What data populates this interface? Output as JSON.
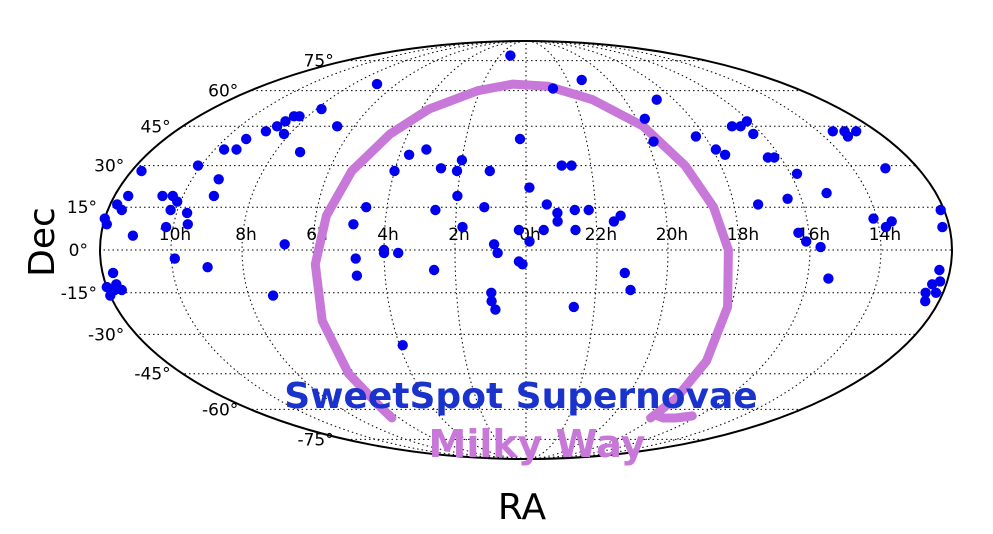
{
  "chart_data": {
    "type": "scatter",
    "projection": "mollweide",
    "xlabel": "RA",
    "ylabel": "Dec",
    "ra_tick_labels": [
      "10h",
      "8h",
      "6h",
      "4h",
      "2h",
      "0h",
      "22h",
      "20h",
      "18h",
      "16h",
      "14h"
    ],
    "dec_tick_labels": [
      "75°",
      "60°",
      "45°",
      "30°",
      "15°",
      "0°",
      "-15°",
      "-30°",
      "-45°",
      "-60°",
      "-75°"
    ],
    "grid": true,
    "series": [
      {
        "name": "SweetSpot Supernovae",
        "color": "#0000ee",
        "marker": "circle",
        "points": [
          {
            "ra_h": 1.2,
            "dec": 78
          },
          {
            "ra_h": 6.9,
            "dec": 63
          },
          {
            "ra_h": 21.3,
            "dec": 65
          },
          {
            "ra_h": 22.8,
            "dec": 61
          },
          {
            "ra_h": 7.8,
            "dec": 52
          },
          {
            "ra_h": 8.5,
            "dec": 49
          },
          {
            "ra_h": 8.3,
            "dec": 49
          },
          {
            "ra_h": 8.6,
            "dec": 47
          },
          {
            "ra_h": 8.7,
            "dec": 45
          },
          {
            "ra_h": 8.9,
            "dec": 43
          },
          {
            "ra_h": 8.2,
            "dec": 42
          },
          {
            "ra_h": 9.3,
            "dec": 40
          },
          {
            "ra_h": 9.7,
            "dec": 36
          },
          {
            "ra_h": 9.3,
            "dec": 36
          },
          {
            "ra_h": 7.2,
            "dec": 35
          },
          {
            "ra_h": 6.6,
            "dec": 45
          },
          {
            "ra_h": 3.2,
            "dec": 36
          },
          {
            "ra_h": 2.0,
            "dec": 32
          },
          {
            "ra_h": 2.6,
            "dec": 29
          },
          {
            "ra_h": 2.1,
            "dec": 28
          },
          {
            "ra_h": 1.1,
            "dec": 28
          },
          {
            "ra_h": 0.2,
            "dec": 40
          },
          {
            "ra_h": 22.9,
            "dec": 30
          },
          {
            "ra_h": 22.6,
            "dec": 30
          },
          {
            "ra_h": 18.7,
            "dec": 56
          },
          {
            "ra_h": 19.7,
            "dec": 48
          },
          {
            "ra_h": 19.8,
            "dec": 39
          },
          {
            "ra_h": 18.3,
            "dec": 41
          },
          {
            "ra_h": 17.9,
            "dec": 36
          },
          {
            "ra_h": 17.7,
            "dec": 34
          },
          {
            "ra_h": 16.8,
            "dec": 45
          },
          {
            "ra_h": 16.5,
            "dec": 45
          },
          {
            "ra_h": 16.1,
            "dec": 47
          },
          {
            "ra_h": 16.3,
            "dec": 42
          },
          {
            "ra_h": 16.4,
            "dec": 33
          },
          {
            "ra_h": 16.2,
            "dec": 33
          },
          {
            "ra_h": 15.8,
            "dec": 27
          },
          {
            "ra_h": 13.5,
            "dec": 43
          },
          {
            "ra_h": 13.1,
            "dec": 43
          },
          {
            "ra_h": 13.2,
            "dec": 41
          },
          {
            "ra_h": 12.7,
            "dec": 43
          },
          {
            "ra_h": 13.0,
            "dec": 29
          },
          {
            "ra_h": 11.7,
            "dec": 28
          },
          {
            "ra_h": 10.1,
            "dec": 30
          },
          {
            "ra_h": 9.2,
            "dec": 25
          },
          {
            "ra_h": 9.1,
            "dec": 19
          },
          {
            "ra_h": 10.3,
            "dec": 19
          },
          {
            "ra_h": 10.6,
            "dec": 19
          },
          {
            "ra_h": 11.6,
            "dec": 19
          },
          {
            "ra_h": 11.6,
            "dec": 14
          },
          {
            "ra_h": 10.2,
            "dec": 14
          },
          {
            "ra_h": 10.1,
            "dec": 17
          },
          {
            "ra_h": 11.1,
            "dec": 5
          },
          {
            "ra_h": 11.8,
            "dec": 16
          },
          {
            "ra_h": 9.7,
            "dec": 13
          },
          {
            "ra_h": 9.6,
            "dec": 9
          },
          {
            "ra_h": 10.2,
            "dec": 8
          },
          {
            "ra_h": 4.0,
            "dec": 28
          },
          {
            "ra_h": 2.0,
            "dec": 19
          },
          {
            "ra_h": 1.2,
            "dec": 15
          },
          {
            "ra_h": 2.6,
            "dec": 14
          },
          {
            "ra_h": 23.9,
            "dec": 22
          },
          {
            "ra_h": 23.4,
            "dec": 16
          },
          {
            "ra_h": 23.1,
            "dec": 13
          },
          {
            "ra_h": 22.6,
            "dec": 14
          },
          {
            "ra_h": 22.2,
            "dec": 14
          },
          {
            "ra_h": 23.1,
            "dec": 10
          },
          {
            "ra_h": 22.6,
            "dec": 7
          },
          {
            "ra_h": 23.5,
            "dec": 7
          },
          {
            "ra_h": 21.3,
            "dec": 12
          },
          {
            "ra_h": 21.5,
            "dec": 10
          },
          {
            "ra_h": 15.2,
            "dec": 20
          },
          {
            "ra_h": 17.3,
            "dec": 16
          },
          {
            "ra_h": 16.4,
            "dec": 18
          },
          {
            "ra_h": 14.1,
            "dec": 11
          },
          {
            "ra_h": 13.6,
            "dec": 10
          },
          {
            "ra_h": 13.8,
            "dec": 8
          },
          {
            "ra_h": 12.1,
            "dec": 14
          },
          {
            "ra_h": 12.0,
            "dec": 11
          },
          {
            "ra_h": 11.9,
            "dec": 9
          },
          {
            "ra_h": 12.2,
            "dec": 8
          },
          {
            "ra_h": 16.3,
            "dec": 6
          },
          {
            "ra_h": 16.1,
            "dec": 3
          },
          {
            "ra_h": 15.7,
            "dec": 1
          },
          {
            "ra_h": 15.4,
            "dec": -10
          },
          {
            "ra_h": 12.3,
            "dec": -7
          },
          {
            "ra_h": 11.8,
            "dec": -14
          },
          {
            "ra_h": 12.2,
            "dec": -15
          },
          {
            "ra_h": 12.0,
            "dec": -13
          },
          {
            "ra_h": 12.2,
            "dec": -11
          },
          {
            "ra_h": 12.4,
            "dec": -12
          },
          {
            "ra_h": 12.0,
            "dec": -16
          },
          {
            "ra_h": 11.6,
            "dec": -14
          },
          {
            "ra_h": 11.7,
            "dec": -12
          },
          {
            "ra_h": 12.5,
            "dec": -15
          },
          {
            "ra_h": 12.4,
            "dec": -18
          },
          {
            "ra_h": 11.7,
            "dec": -8
          },
          {
            "ra_h": 9.0,
            "dec": -6
          },
          {
            "ra_h": 9.9,
            "dec": -3
          },
          {
            "ra_h": 7.3,
            "dec": -16
          },
          {
            "ra_h": 6.8,
            "dec": 2
          },
          {
            "ra_h": 4.8,
            "dec": -9
          },
          {
            "ra_h": 4.8,
            "dec": -3
          },
          {
            "ra_h": 4.0,
            "dec": 0
          },
          {
            "ra_h": 4.0,
            "dec": -1
          },
          {
            "ra_h": 3.6,
            "dec": -1
          },
          {
            "ra_h": 3.9,
            "dec": -34
          },
          {
            "ra_h": 2.6,
            "dec": -7
          },
          {
            "ra_h": 1.8,
            "dec": 8
          },
          {
            "ra_h": 0.9,
            "dec": 2
          },
          {
            "ra_h": 0.8,
            "dec": -1
          },
          {
            "ra_h": 0.2,
            "dec": -4
          },
          {
            "ra_h": 0.1,
            "dec": -5
          },
          {
            "ra_h": 1.0,
            "dec": -15
          },
          {
            "ra_h": 1.0,
            "dec": -18
          },
          {
            "ra_h": 0.9,
            "dec": -21
          },
          {
            "ra_h": 0.2,
            "dec": 7
          },
          {
            "ra_h": 23.9,
            "dec": 3
          },
          {
            "ra_h": 22.6,
            "dec": -20
          },
          {
            "ra_h": 21.2,
            "dec": -8
          },
          {
            "ra_h": 21.0,
            "dec": -14
          },
          {
            "ra_h": 4.9,
            "dec": 9
          },
          {
            "ra_h": 4.6,
            "dec": 15
          },
          {
            "ra_h": 3.7,
            "dec": 34
          }
        ]
      },
      {
        "name": "Milky Way",
        "color": "#c878d8",
        "marker": "line",
        "path": [
          {
            "ra_h": 18.1,
            "dec": -64
          },
          {
            "ra_h": 18.0,
            "dec": -55
          },
          {
            "ra_h": 18.0,
            "dec": -40
          },
          {
            "ra_h": 18.1,
            "dec": -20
          },
          {
            "ra_h": 18.3,
            "dec": 0
          },
          {
            "ra_h": 18.6,
            "dec": 15
          },
          {
            "ra_h": 19.1,
            "dec": 30
          },
          {
            "ra_h": 19.9,
            "dec": 45
          },
          {
            "ra_h": 21.3,
            "dec": 56
          },
          {
            "ra_h": 23.0,
            "dec": 62
          },
          {
            "ra_h": 0.6,
            "dec": 63
          },
          {
            "ra_h": 2.1,
            "dec": 60
          },
          {
            "ra_h": 3.7,
            "dec": 52
          },
          {
            "ra_h": 4.6,
            "dec": 42
          },
          {
            "ra_h": 5.3,
            "dec": 28
          },
          {
            "ra_h": 5.7,
            "dec": 12
          },
          {
            "ra_h": 5.95,
            "dec": -5
          },
          {
            "ra_h": 6.1,
            "dec": -25
          },
          {
            "ra_h": 6.2,
            "dec": -45
          },
          {
            "ra_h": 6.2,
            "dec": -58
          },
          {
            "ra_h": 6.35,
            "dec": -64
          }
        ],
        "tail": [
          {
            "ra_h": 17.9,
            "dec": -63
          },
          {
            "ra_h": 17.5,
            "dec": -64
          },
          {
            "ra_h": 16.9,
            "dec": -64
          },
          {
            "ra_h": 16.3,
            "dec": -63
          }
        ]
      }
    ]
  }
}
